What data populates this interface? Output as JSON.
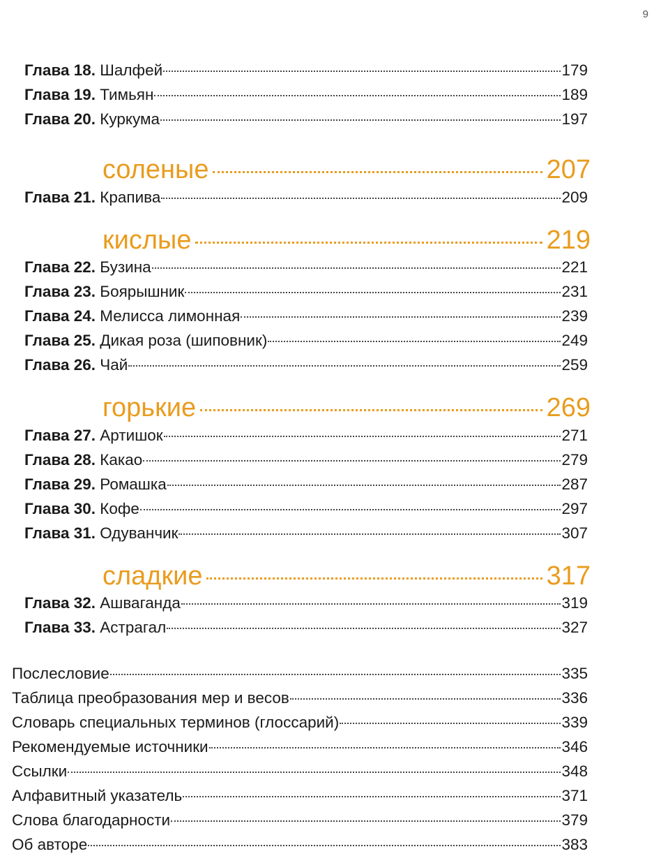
{
  "page_number": "9",
  "accent_color": "#e99c1e",
  "groups": [
    {
      "section": null,
      "chapters": [
        {
          "label": "Глава 18.",
          "title": "Шалфей",
          "page": "179"
        },
        {
          "label": "Глава 19.",
          "title": "Тимьян",
          "page": "189"
        },
        {
          "label": "Глава 20.",
          "title": "Куркума",
          "page": "197"
        }
      ]
    },
    {
      "section": {
        "title": "соленые",
        "page": "207"
      },
      "chapters": [
        {
          "label": "Глава 21.",
          "title": "Крапива",
          "page": "209"
        }
      ]
    },
    {
      "section": {
        "title": "кислые",
        "page": "219"
      },
      "chapters": [
        {
          "label": "Глава 22.",
          "title": "Бузина",
          "page": "221"
        },
        {
          "label": "Глава 23.",
          "title": "Боярышник",
          "page": "231"
        },
        {
          "label": "Глава 24.",
          "title": "Мелисса лимонная",
          "page": "239"
        },
        {
          "label": "Глава 25.",
          "title": "Дикая роза (шиповник)",
          "page": "249"
        },
        {
          "label": "Глава 26.",
          "title": "Чай",
          "page": "259"
        }
      ]
    },
    {
      "section": {
        "title": "горькие",
        "page": "269"
      },
      "chapters": [
        {
          "label": "Глава 27.",
          "title": "Артишок",
          "page": "271"
        },
        {
          "label": "Глава 28.",
          "title": "Какао",
          "page": "279"
        },
        {
          "label": "Глава 29.",
          "title": "Ромашка",
          "page": "287"
        },
        {
          "label": "Глава 30.",
          "title": "Кофе",
          "page": "297"
        },
        {
          "label": "Глава 31.",
          "title": "Одуванчик",
          "page": "307"
        }
      ]
    },
    {
      "section": {
        "title": "сладкие",
        "page": "317"
      },
      "chapters": [
        {
          "label": "Глава 32.",
          "title": "Ашваганда",
          "page": "319"
        },
        {
          "label": "Глава 33.",
          "title": "Астрагал",
          "page": "327"
        }
      ]
    }
  ],
  "back_matter": [
    {
      "title": "Послесловие",
      "page": "335"
    },
    {
      "title": "Таблица преобразования мер и весов",
      "page": "336"
    },
    {
      "title": "Словарь специальных терминов (глоссарий)",
      "page": "339"
    },
    {
      "title": "Рекомендуемые источники",
      "page": "346"
    },
    {
      "title": "Ссылки",
      "page": "348"
    },
    {
      "title": "Алфавитный указатель",
      "page": "371"
    },
    {
      "title": "Слова благодарности",
      "page": "379"
    },
    {
      "title": "Об авторе",
      "page": "383"
    }
  ]
}
